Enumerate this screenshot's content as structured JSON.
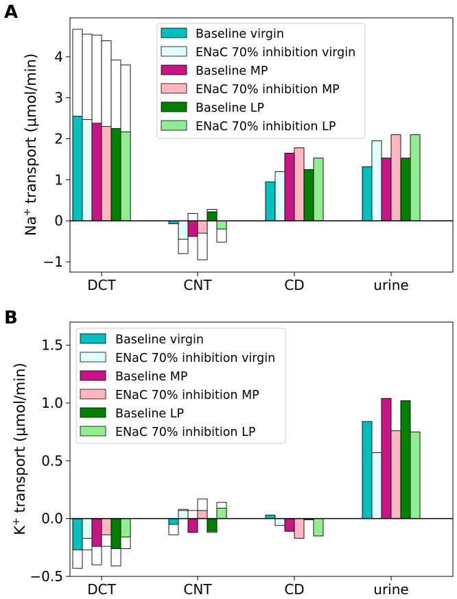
{
  "legend_labels": {
    "s0": "Baseline virgin",
    "s1": "ENaC 70% inhibition virgin",
    "s2": "Baseline MP",
    "s3": "ENaC 70% inhibition MP",
    "s4": "Baseline LP",
    "s5": "ENaC 70% inhibition LP"
  },
  "series_colors": [
    "#00bfbf",
    "#e0ffff",
    "#c71585",
    "#ffb6c1",
    "#008000",
    "#90ee90"
  ],
  "chart_data": [
    {
      "type": "bar",
      "panel_label": "A",
      "ylabel_prefix": "Na",
      "ylabel_sup": "+",
      "ylabel_suffix": " transport (μmol/min)",
      "categories": [
        "DCT",
        "CNT",
        "CD",
        "urine"
      ],
      "ylim": [
        -1.25,
        4.95
      ],
      "yticks": [
        -1,
        0,
        1,
        2,
        3,
        4
      ],
      "ytick_labels": [
        "−1",
        "0",
        "1",
        "2",
        "3",
        "4"
      ],
      "legend_position": "upper-center",
      "series": [
        {
          "name": "Baseline virgin",
          "values": [
            2.55,
            -0.07,
            0.95,
            1.32
          ],
          "outline": [
            4.67,
            -0.07,
            0.95,
            1.32
          ]
        },
        {
          "name": "ENaC 70% inhibition virgin",
          "values": [
            2.47,
            -0.45,
            1.2,
            1.95
          ],
          "outline": [
            4.55,
            -0.8,
            1.2,
            1.95
          ]
        },
        {
          "name": "Baseline MP",
          "values": [
            2.38,
            -0.38,
            1.65,
            1.53
          ],
          "outline": [
            4.53,
            0.18,
            1.65,
            1.53
          ]
        },
        {
          "name": "ENaC 70% inhibition MP",
          "values": [
            2.3,
            -0.3,
            1.78,
            2.1
          ],
          "outline": [
            4.39,
            -0.95,
            1.78,
            2.1
          ]
        },
        {
          "name": "Baseline LP",
          "values": [
            2.25,
            0.22,
            1.25,
            1.53
          ],
          "outline": [
            3.92,
            0.28,
            1.25,
            1.53
          ]
        },
        {
          "name": "ENaC 70% inhibition LP",
          "values": [
            2.17,
            -0.2,
            1.53,
            2.1
          ],
          "outline": [
            3.8,
            -0.52,
            1.53,
            2.1
          ]
        }
      ]
    },
    {
      "type": "bar",
      "panel_label": "B",
      "ylabel_prefix": "K",
      "ylabel_sup": "+",
      "ylabel_suffix": " transport (μmol/min)",
      "categories": [
        "DCT",
        "CNT",
        "CD",
        "urine"
      ],
      "ylim": [
        -0.5,
        1.7
      ],
      "yticks": [
        -0.5,
        0,
        0.5,
        1,
        1.5
      ],
      "ytick_labels": [
        "−0.5",
        "0.0",
        "0.5",
        "1.0",
        "1.5"
      ],
      "legend_position": "upper-left",
      "series": [
        {
          "name": "Baseline virgin",
          "values": [
            -0.27,
            -0.05,
            0.03,
            0.84
          ],
          "outline": [
            -0.43,
            -0.14,
            0.03,
            0.84
          ]
        },
        {
          "name": "ENaC 70% inhibition virgin",
          "values": [
            -0.17,
            0.07,
            -0.06,
            0.57
          ],
          "outline": [
            -0.27,
            0.08,
            -0.06,
            0.57
          ]
        },
        {
          "name": "Baseline MP",
          "values": [
            -0.24,
            -0.12,
            -0.11,
            1.04
          ],
          "outline": [
            -0.4,
            0.07,
            -0.11,
            1.04
          ]
        },
        {
          "name": "ENaC 70% inhibition MP",
          "values": [
            -0.14,
            0.07,
            -0.17,
            0.76
          ],
          "outline": [
            -0.24,
            0.17,
            -0.17,
            0.76
          ]
        },
        {
          "name": "Baseline LP",
          "values": [
            -0.26,
            -0.11,
            -0.01,
            1.02
          ],
          "outline": [
            -0.41,
            -0.12,
            -0.01,
            1.02
          ]
        },
        {
          "name": "ENaC 70% inhibition LP",
          "values": [
            -0.16,
            0.09,
            -0.15,
            0.75
          ],
          "outline": [
            -0.26,
            0.14,
            -0.15,
            0.75
          ]
        }
      ]
    }
  ]
}
